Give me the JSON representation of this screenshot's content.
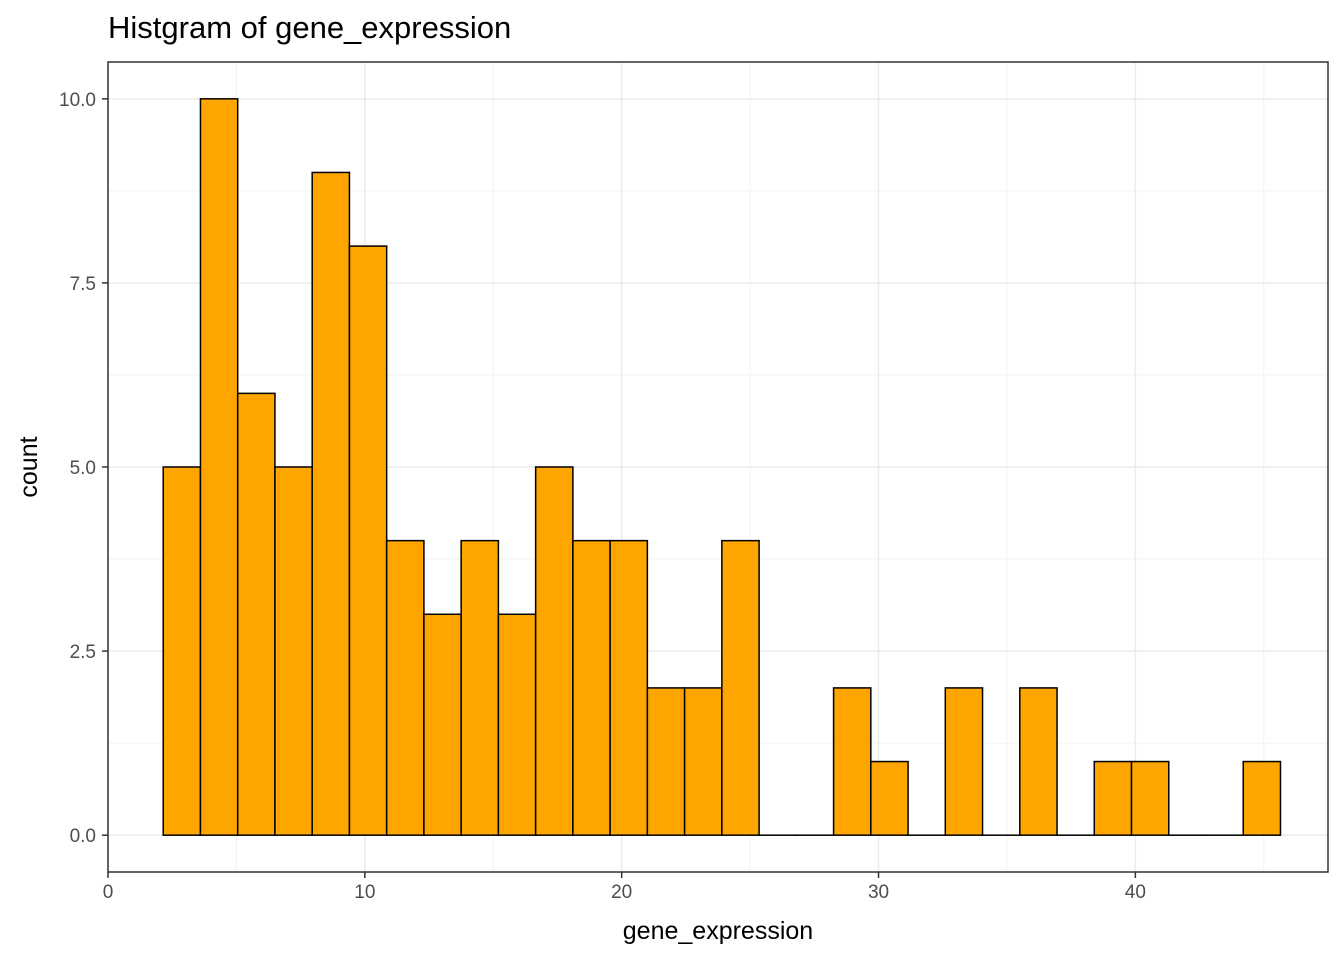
{
  "chart_data": {
    "type": "bar",
    "title": "Histgram of gene_expression",
    "xlabel": "gene_expression",
    "ylabel": "count",
    "xlim": [
      0,
      47.5
    ],
    "ylim": [
      -0.5,
      10.5
    ],
    "x_ticks": [
      0,
      10,
      20,
      30,
      40
    ],
    "x_tick_labels": [
      "0",
      "10",
      "20",
      "30",
      "40"
    ],
    "y_ticks": [
      0,
      2.5,
      5,
      7.5,
      10
    ],
    "y_tick_labels": [
      "0.0",
      "2.5",
      "5.0",
      "7.5",
      "10.0"
    ],
    "grid": true,
    "bin_width": 1.45,
    "bins": [
      {
        "x_start": 2.15,
        "x_end": 3.6,
        "count": 5
      },
      {
        "x_start": 3.6,
        "x_end": 5.05,
        "count": 10
      },
      {
        "x_start": 5.05,
        "x_end": 6.5,
        "count": 6
      },
      {
        "x_start": 6.5,
        "x_end": 7.95,
        "count": 5
      },
      {
        "x_start": 7.95,
        "x_end": 9.4,
        "count": 9
      },
      {
        "x_start": 9.4,
        "x_end": 10.85,
        "count": 8
      },
      {
        "x_start": 10.85,
        "x_end": 12.3,
        "count": 4
      },
      {
        "x_start": 12.3,
        "x_end": 13.75,
        "count": 3
      },
      {
        "x_start": 13.75,
        "x_end": 15.2,
        "count": 4
      },
      {
        "x_start": 15.2,
        "x_end": 16.65,
        "count": 3
      },
      {
        "x_start": 16.65,
        "x_end": 18.1,
        "count": 5
      },
      {
        "x_start": 18.1,
        "x_end": 19.55,
        "count": 4
      },
      {
        "x_start": 19.55,
        "x_end": 21.0,
        "count": 4
      },
      {
        "x_start": 21.0,
        "x_end": 22.45,
        "count": 2
      },
      {
        "x_start": 22.45,
        "x_end": 23.9,
        "count": 2
      },
      {
        "x_start": 23.9,
        "x_end": 25.35,
        "count": 4
      },
      {
        "x_start": 25.35,
        "x_end": 26.8,
        "count": 0
      },
      {
        "x_start": 26.8,
        "x_end": 28.25,
        "count": 0
      },
      {
        "x_start": 28.25,
        "x_end": 29.7,
        "count": 2
      },
      {
        "x_start": 29.7,
        "x_end": 31.15,
        "count": 1
      },
      {
        "x_start": 31.15,
        "x_end": 32.6,
        "count": 0
      },
      {
        "x_start": 32.6,
        "x_end": 34.05,
        "count": 2
      },
      {
        "x_start": 34.05,
        "x_end": 35.5,
        "count": 0
      },
      {
        "x_start": 35.5,
        "x_end": 36.95,
        "count": 2
      },
      {
        "x_start": 36.95,
        "x_end": 38.4,
        "count": 0
      },
      {
        "x_start": 38.4,
        "x_end": 39.85,
        "count": 1
      },
      {
        "x_start": 39.85,
        "x_end": 41.3,
        "count": 1
      },
      {
        "x_start": 41.3,
        "x_end": 42.75,
        "count": 0
      },
      {
        "x_start": 42.75,
        "x_end": 44.2,
        "count": 0
      },
      {
        "x_start": 44.2,
        "x_end": 45.65,
        "count": 1
      }
    ],
    "colors": {
      "bar_fill": "#ffa500",
      "bar_outline": "#000000",
      "grid_major": "#ebebeb",
      "grid_minor": "#f2f2f2",
      "panel_border": "#333333"
    }
  }
}
